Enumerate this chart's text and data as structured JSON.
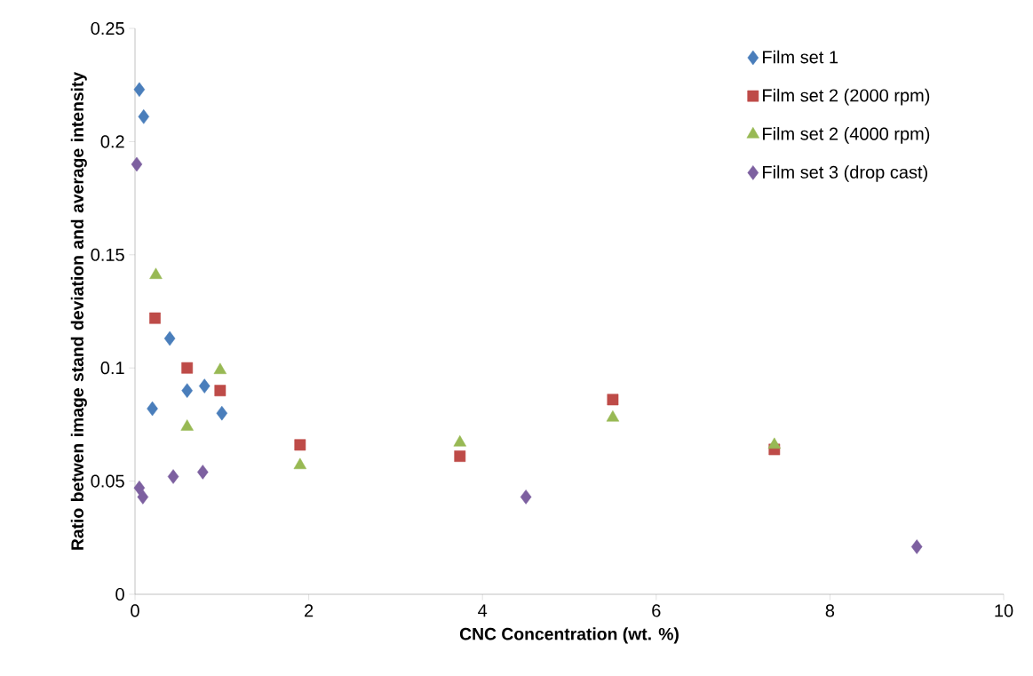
{
  "chart_data": {
    "type": "scatter",
    "xlabel": "CNC Concentration (wt. %)",
    "ylabel": "Ratio betwen image stand deviation and average intensity",
    "xlim": [
      0,
      10
    ],
    "xticks": [
      0,
      2,
      4,
      6,
      8,
      10
    ],
    "ylim": [
      0,
      0.25
    ],
    "yticks": [
      0,
      0.05,
      0.1,
      0.15,
      0.2,
      0.25
    ],
    "grid": false,
    "legend": "top right",
    "series": [
      {
        "name": "Film set 1",
        "color": "#4a7ebb",
        "marker": "diamond",
        "x": [
          0.05,
          0.1,
          0.2,
          0.4,
          0.6,
          0.8,
          1.0
        ],
        "values": [
          0.223,
          0.211,
          0.082,
          0.113,
          0.09,
          0.092,
          0.08
        ]
      },
      {
        "name": "Film set 2 (2000 rpm)",
        "color": "#be4b48",
        "marker": "square",
        "x": [
          0.23,
          0.6,
          0.98,
          1.9,
          3.74,
          5.5,
          7.36
        ],
        "values": [
          0.122,
          0.1,
          0.09,
          0.066,
          0.061,
          0.086,
          0.064
        ]
      },
      {
        "name": "Film set 2 (4000 rpm)",
        "color": "#98b954",
        "marker": "triangle",
        "x": [
          0.24,
          0.6,
          0.98,
          1.9,
          3.74,
          5.5,
          7.36
        ],
        "values": [
          0.141,
          0.074,
          0.099,
          0.057,
          0.067,
          0.078,
          0.066
        ]
      },
      {
        "name": "Film set 3 (drop cast)",
        "color": "#7d60a0",
        "marker": "diamond",
        "x": [
          0.02,
          0.05,
          0.09,
          0.44,
          0.78,
          4.5,
          9.0
        ],
        "values": [
          0.19,
          0.047,
          0.043,
          0.052,
          0.054,
          0.043,
          0.021
        ]
      }
    ]
  }
}
